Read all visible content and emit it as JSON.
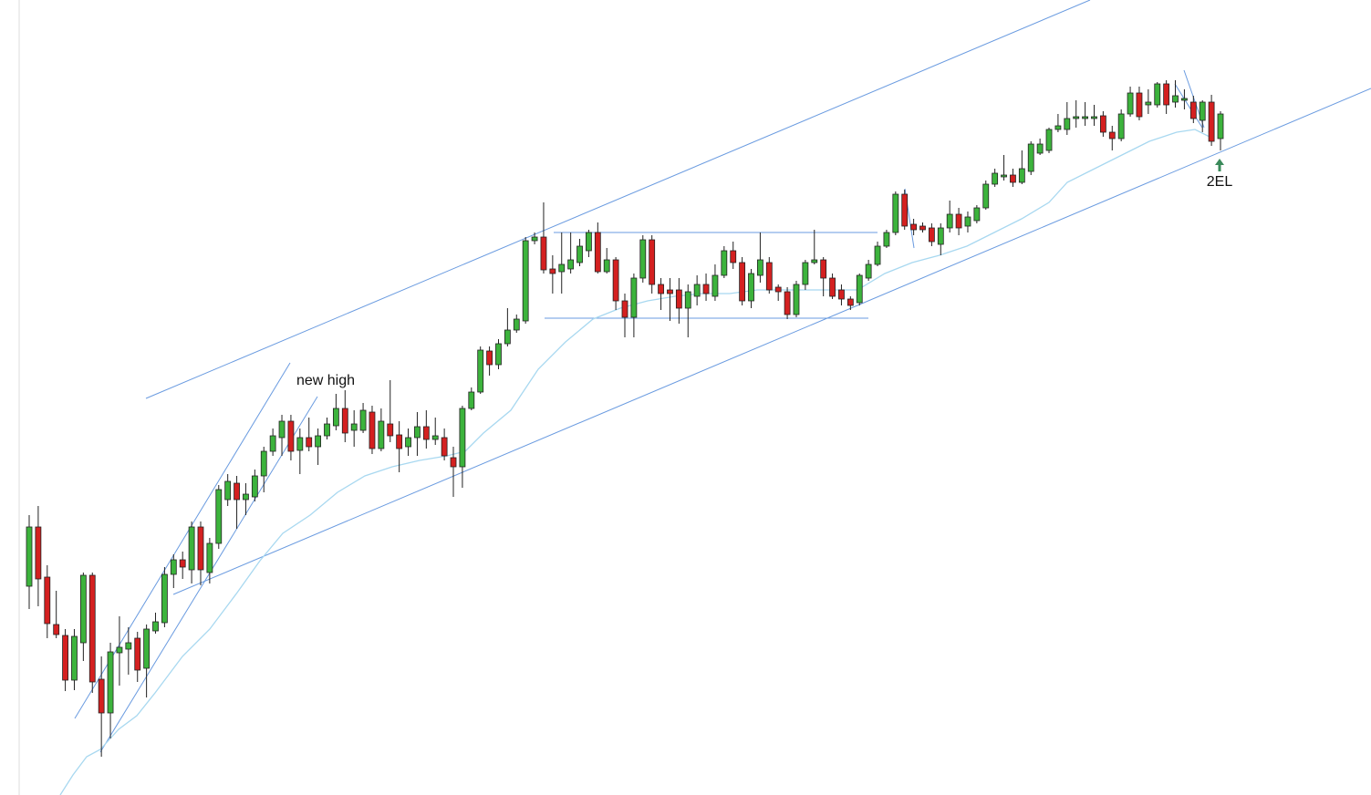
{
  "chart_data": {
    "type": "candlestick",
    "annotations": [
      "new high",
      "2EL"
    ],
    "up_color": "#3cb33c",
    "down_color": "#d42020",
    "ylim": [
      0,
      872
    ],
    "open": [
      229,
      294,
      239,
      187,
      175,
      126,
      167,
      241,
      127,
      90,
      156,
      160,
      172,
      139,
      180,
      189,
      242,
      258,
      247,
      294,
      244,
      276,
      324,
      342,
      324,
      327,
      350,
      377,
      392,
      410,
      378,
      392,
      382,
      394,
      405,
      424,
      400,
      400,
      420,
      380,
      407,
      395,
      382,
      392,
      404,
      390,
      392,
      370,
      360,
      424,
      442,
      487,
      472,
      495,
      510,
      520,
      608,
      612,
      577,
      574,
      577,
      584,
      597,
      617,
      574,
      587,
      542,
      524,
      567,
      609,
      560,
      554,
      554,
      534,
      547,
      560,
      547,
      570,
      597,
      584,
      542,
      570,
      584,
      557,
      552,
      527,
      560,
      584,
      587,
      567,
      554,
      544,
      540,
      567,
      582,
      602,
      617,
      659,
      626,
      624,
      622,
      604,
      622,
      637,
      624,
      630,
      644,
      670,
      678,
      680,
      672,
      684,
      704,
      707,
      730,
      730,
      742,
      742,
      742,
      745,
      727,
      720,
      747,
      770,
      757,
      757,
      780,
      760,
      762,
      760,
      740,
      760,
      720
    ],
    "high": [
      307,
      317,
      252,
      224,
      182,
      182,
      244,
      244,
      152,
      167,
      196,
      184,
      179,
      187,
      200,
      250,
      264,
      267,
      300,
      300,
      282,
      340,
      352,
      350,
      342,
      357,
      382,
      402,
      417,
      417,
      402,
      414,
      402,
      414,
      440,
      444,
      422,
      430,
      427,
      424,
      455,
      410,
      402,
      420,
      422,
      414,
      402,
      382,
      427,
      447,
      492,
      492,
      500,
      534,
      527,
      612,
      617,
      650,
      592,
      617,
      617,
      610,
      620,
      628,
      600,
      590,
      550,
      572,
      614,
      614,
      567,
      567,
      567,
      560,
      570,
      572,
      582,
      602,
      607,
      590,
      577,
      617,
      590,
      560,
      557,
      564,
      587,
      620,
      590,
      572,
      560,
      547,
      572,
      587,
      607,
      620,
      662,
      664,
      632,
      628,
      627,
      627,
      652,
      644,
      640,
      647,
      674,
      687,
      702,
      687,
      707,
      717,
      720,
      732,
      747,
      760,
      762,
      760,
      757,
      750,
      734,
      752,
      777,
      777,
      774,
      782,
      784,
      784,
      774,
      767,
      762,
      768,
      750
    ],
    "low": [
      204,
      207,
      172,
      172,
      114,
      115,
      147,
      112,
      42,
      62,
      120,
      132,
      124,
      107,
      177,
      184,
      227,
      237,
      232,
      230,
      232,
      270,
      317,
      292,
      307,
      322,
      332,
      372,
      372,
      367,
      352,
      377,
      362,
      390,
      400,
      387,
      382,
      397,
      374,
      377,
      387,
      354,
      372,
      372,
      380,
      384,
      367,
      327,
      337,
      422,
      440,
      460,
      467,
      492,
      507,
      517,
      604,
      572,
      550,
      550,
      572,
      580,
      590,
      572,
      572,
      532,
      502,
      502,
      562,
      550,
      532,
      520,
      517,
      502,
      537,
      542,
      542,
      567,
      577,
      537,
      534,
      562,
      550,
      542,
      522,
      524,
      554,
      582,
      547,
      544,
      537,
      532,
      537,
      564,
      580,
      600,
      614,
      620,
      614,
      617,
      602,
      592,
      617,
      614,
      617,
      627,
      642,
      667,
      674,
      667,
      670,
      680,
      702,
      704,
      727,
      724,
      732,
      734,
      734,
      722,
      707,
      717,
      744,
      740,
      747,
      754,
      747,
      754,
      752,
      737,
      727,
      712,
      707
    ],
    "close": [
      294,
      237,
      188,
      176,
      126,
      174,
      241,
      124,
      90,
      157,
      162,
      167,
      137,
      182,
      190,
      242,
      258,
      250,
      294,
      247,
      276,
      335,
      344,
      324,
      330,
      350,
      377,
      394,
      410,
      377,
      392,
      382,
      394,
      407,
      424,
      397,
      407,
      422,
      380,
      410,
      394,
      380,
      392,
      404,
      390,
      394,
      372,
      360,
      424,
      442,
      488,
      472,
      495,
      510,
      522,
      608,
      612,
      576,
      572,
      582,
      587,
      602,
      617,
      574,
      587,
      542,
      524,
      567,
      609,
      560,
      550,
      550,
      534,
      552,
      560,
      550,
      570,
      597,
      584,
      542,
      572,
      587,
      554,
      552,
      527,
      560,
      584,
      587,
      567,
      547,
      544,
      537,
      570,
      582,
      602,
      617,
      659,
      624,
      620,
      620,
      607,
      622,
      637,
      622,
      634,
      644,
      670,
      682,
      680,
      672,
      687,
      714,
      714,
      730,
      734,
      742,
      744,
      744,
      744,
      727,
      720,
      747,
      770,
      744,
      760,
      780,
      757,
      767,
      764,
      742,
      760,
      717,
      747
    ]
  }
}
